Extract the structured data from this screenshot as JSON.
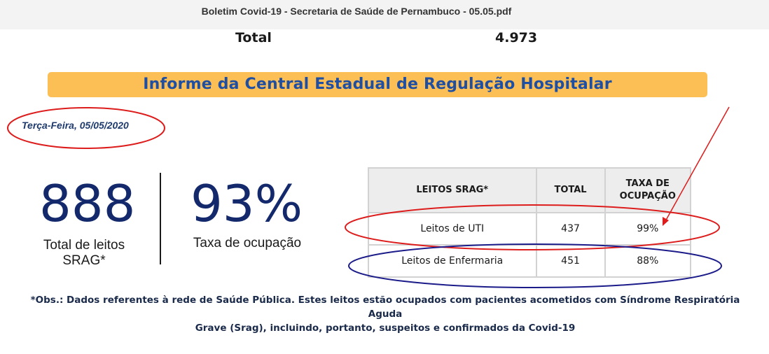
{
  "document": {
    "title": "Boletim Covid-19 - Secretaria de Saúde de Pernambuco - 05.05.pdf"
  },
  "summary": {
    "total_label": "Total",
    "total_value": "4.973"
  },
  "banner": {
    "title": "Informe da Central Estadual de Regulação Hospitalar",
    "background": "#fbbf55",
    "text_color": "#1f4fa3"
  },
  "report": {
    "date": "Terça-Feira,  05/05/2020"
  },
  "stats": {
    "beds_total": "888",
    "beds_caption_line1": "Total de leitos",
    "beds_caption_line2": "SRAG*",
    "occupancy": "93%",
    "occupancy_caption": "Taxa de ocupação"
  },
  "table": {
    "headers": [
      "LEITOS SRAG*",
      "TOTAL",
      "TAXA DE OCUPAÇÃO"
    ],
    "rows": [
      {
        "name": "Leitos de UTI",
        "total": "437",
        "rate": "99%"
      },
      {
        "name": "Leitos de Enfermaria",
        "total": "451",
        "rate": "88%"
      }
    ]
  },
  "footnote": {
    "line1": "*Obs.: Dados referentes à rede de Saúde Pública. Estes leitos estão ocupados com pacientes acometidos com Síndrome Respiratória Aguda",
    "line2": "Grave (Srag), incluindo, portanto, suspeitos e confirmados da Covid-19"
  },
  "annotations": {
    "red": "#dd1c1c",
    "navy": "#1b1b8a"
  }
}
